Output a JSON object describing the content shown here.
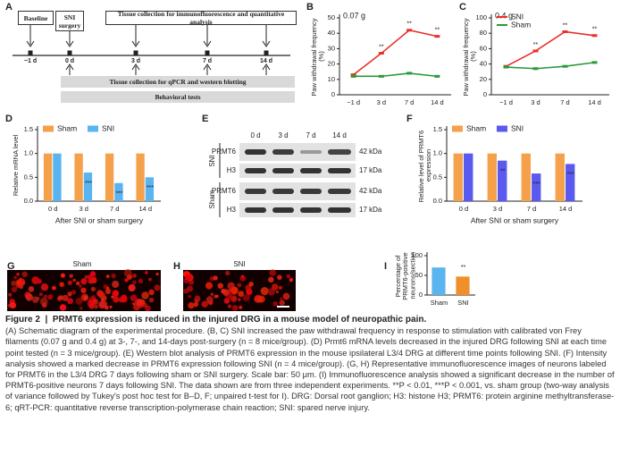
{
  "panels": {
    "a": {
      "letter": "A",
      "baseline": "Baseline",
      "surgery": "SNI surgery",
      "if_collection": "Tissue collection for immunofluorescence and quantitative analysis",
      "timepoints": [
        "−1 d",
        "0 d",
        "3 d",
        "7 d",
        "14 d"
      ],
      "qpcr_collection": "Tissue collection for qPCR and western blotting",
      "behavior": "Behavioral tests"
    },
    "b": {
      "letter": "B"
    },
    "c": {
      "letter": "C"
    },
    "d": {
      "letter": "D"
    },
    "e": {
      "letter": "E",
      "lanes": [
        "0 d",
        "3 d",
        "7 d",
        "14 d"
      ],
      "groups": [
        "SNI",
        "Sham"
      ],
      "rows": [
        "PRMT6",
        "H3",
        "PRMT6",
        "H3"
      ],
      "sizes": [
        "42 kDa",
        "17 kDa",
        "42 kDa",
        "17 kDa"
      ]
    },
    "f": {
      "letter": "F"
    },
    "g": {
      "letter": "G",
      "label": "Sham"
    },
    "h": {
      "letter": "H",
      "label": "SNI"
    },
    "i": {
      "letter": "I"
    }
  },
  "chart_data": [
    {
      "type": "line",
      "title": "0.07 g",
      "y_label": "Paw withdrawal frequency (%)",
      "categories": [
        "−1 d",
        "3 d",
        "7 d",
        "14 d"
      ],
      "series": [
        {
          "color": "#e8302a",
          "values": [
            13,
            27,
            42,
            38
          ],
          "significance": [
            null,
            "**",
            "**",
            "**"
          ]
        },
        {
          "color": "#2a9a3a",
          "values": [
            12,
            12,
            14,
            12
          ]
        }
      ],
      "ylim": [
        0,
        50
      ],
      "yticks": [
        0,
        10,
        20,
        30,
        40,
        50
      ]
    },
    {
      "type": "line",
      "title": "0.4 g",
      "y_label": "Paw withdrawal frequency (%)",
      "categories": [
        "−1 d",
        "3 d",
        "7 d",
        "14 d"
      ],
      "series": [
        {
          "name": "SNI",
          "color": "#e8302a",
          "values": [
            37,
            57,
            82,
            77
          ],
          "significance": [
            null,
            "**",
            "**",
            "**"
          ]
        },
        {
          "name": "Sham",
          "color": "#2a9a3a",
          "values": [
            36,
            34,
            37,
            42
          ]
        }
      ],
      "ylim": [
        0,
        100
      ],
      "yticks": [
        0,
        20,
        40,
        60,
        80,
        100
      ],
      "legend": "upper left"
    },
    {
      "type": "bar",
      "y_label": "Relative mRNA level",
      "x_label": "After SNI or sham surgery",
      "categories": [
        "0 d",
        "3 d",
        "7 d",
        "14 d"
      ],
      "series": [
        {
          "name": "Sham",
          "color": "#f5a04a",
          "values": [
            1.0,
            1.0,
            1.0,
            1.0
          ]
        },
        {
          "name": "SNI",
          "color": "#5ab4f0",
          "values": [
            1.0,
            0.6,
            0.38,
            0.5
          ],
          "significance": [
            null,
            "***",
            "***",
            "***"
          ]
        }
      ],
      "ylim": [
        0,
        1.5
      ],
      "yticks": [
        {
          "value": 0,
          "label": "0.0"
        },
        0.5,
        {
          "value": 1,
          "label": "1.0"
        },
        1.5
      ],
      "legend": "top"
    },
    {
      "type": "bar",
      "y_label": "Relative level of PRMT6 expression",
      "x_label": "After SNI or sham surgery",
      "categories": [
        "0 d",
        "3 d",
        "7 d",
        "14 d"
      ],
      "series": [
        {
          "name": "Sham",
          "color": "#f5a04a",
          "values": [
            1.0,
            1.0,
            1.0,
            1.0
          ]
        },
        {
          "name": "SNI",
          "color": "#5a5af0",
          "values": [
            1.0,
            0.85,
            0.58,
            0.78
          ],
          "significance": [
            null,
            "**",
            "***",
            "***"
          ]
        }
      ],
      "ylim": [
        0,
        1.5
      ],
      "yticks": [
        {
          "value": 0,
          "label": "0.0"
        },
        0.5,
        {
          "value": 1,
          "label": "1.0"
        },
        1.5
      ],
      "legend": "top"
    },
    {
      "type": "bar",
      "y_label": "Percentage of PRMT6-positive neurons/section",
      "categories": [
        "Sham",
        "SNI"
      ],
      "series": [
        {
          "colors": [
            "#5ab4f0",
            "#f0902a"
          ],
          "values": [
            70,
            47
          ],
          "significance": [
            null,
            "**"
          ]
        }
      ],
      "ylim": [
        0,
        100
      ],
      "yticks": [
        0,
        50,
        100
      ]
    }
  ],
  "caption": {
    "label": "Figure 2",
    "title": "PRMT6 expression is reduced in the injured DRG in a mouse model of neuropathic pain.",
    "body": "(A) Schematic diagram of the experimental procedure. (B, C) SNI increased the paw withdrawal frequency in response to stimulation with calibrated von Frey filaments (0.07 g and 0.4 g) at 3-, 7-, and 14-days post-surgery (n = 8 mice/group). (D) Prmt6 mRNA levels decreased in the injured DRG following SNI at each time point tested (n = 3 mice/group). (E) Western blot analysis of PRMT6 expression in the mouse ipsilateral L3/4 DRG at different time points following SNI. (F) Intensity analysis showed a marked decrease in PRMT6 expression following SNI (n = 4 mice/group). (G, H) Representative immunofluorescence images of neurons labeled for PRMT6 in the L3/4 DRG 7 days following sham or SNI surgery. Scale bar: 50 μm. (I) Immunofluorescence analysis showed a significant decrease in the number of PRMT6-positive neurons 7 days following SNI. The data shown are from three independent experiments. **P < 0.01, ***P < 0.001, vs. sham group (two-way analysis of variance followed by Tukey's post hoc test for B–D, F; unpaired t-test for I). DRG: Dorsal root ganglion; H3: histone H3; PRMT6: protein arginine methyltransferase-6; qRT-PCR: quantitative reverse transcription-polymerase chain reaction; SNI: spared nerve injury."
  }
}
